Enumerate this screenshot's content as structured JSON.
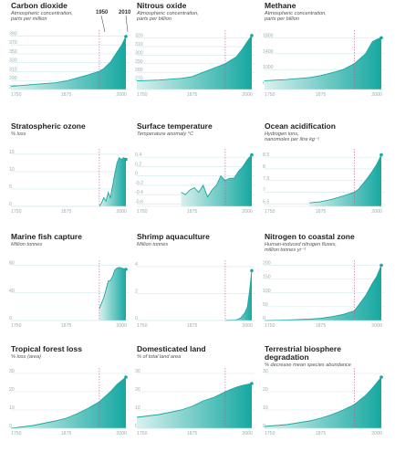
{
  "page": {
    "annotation_1950": "1950",
    "annotation_2010": "2010"
  },
  "colors": {
    "fill_light": "#d8f1ef",
    "fill_dark": "#16a8a1",
    "line": "#16a8a1",
    "grid": "#cfe7e6",
    "axis_text": "#9aaeb0",
    "marker_line": "#c0559a",
    "dot": "#16a8a1"
  },
  "chart_data": [
    {
      "type": "area",
      "title": "Carbon dioxide",
      "subtitle": "Atmospheric concentration,\nparts per million",
      "x_ticks": [
        "1750",
        "1875",
        "2000"
      ],
      "y_ticks": [
        270,
        290,
        310,
        330,
        350,
        370,
        390
      ],
      "ylim": [
        270,
        395
      ],
      "x": [
        1750,
        1800,
        1850,
        1875,
        1900,
        1925,
        1950,
        1960,
        1975,
        1990,
        2000,
        2010
      ],
      "values": [
        277,
        281,
        285,
        289,
        296,
        303,
        311,
        317,
        331,
        354,
        369,
        389
      ]
    },
    {
      "type": "area",
      "title": "Nitrous oxide",
      "subtitle": "Atmospheric concentration,\nparts per billion",
      "x_ticks": [
        "1750",
        "1875",
        "2000"
      ],
      "y_ticks": [
        270,
        280,
        290,
        300,
        310,
        320
      ],
      "ylim": [
        260,
        325
      ],
      "x": [
        1750,
        1800,
        1850,
        1875,
        1900,
        1925,
        1950,
        1975,
        1990,
        2000,
        2010
      ],
      "values": [
        270,
        271,
        273,
        275,
        280,
        285,
        290,
        298,
        308,
        316,
        323
      ]
    },
    {
      "type": "area",
      "title": "Methane",
      "subtitle": "Atmospheric concentration,\nparts per billion",
      "x_ticks": [
        "1750",
        "1875",
        "2000"
      ],
      "y_ticks": [
        600,
        1000,
        1400,
        1800
      ],
      "ylim": [
        500,
        1900
      ],
      "x": [
        1750,
        1800,
        1850,
        1875,
        1900,
        1925,
        1950,
        1975,
        1990,
        2000,
        2010
      ],
      "values": [
        720,
        750,
        800,
        850,
        920,
        1000,
        1150,
        1400,
        1700,
        1760,
        1800
      ]
    },
    {
      "type": "area",
      "title": "Stratospheric ozone",
      "subtitle": "% loss",
      "x_ticks": [
        "1750",
        "1875",
        "2000"
      ],
      "y_ticks": [
        0,
        5,
        10,
        15
      ],
      "ylim": [
        0,
        15.5
      ],
      "x": [
        1950,
        1955,
        1960,
        1965,
        1970,
        1975,
        1980,
        1985,
        1990,
        1995,
        2000,
        2005,
        2010
      ],
      "values": [
        0,
        1,
        2.5,
        1.5,
        4,
        2.5,
        6,
        9.5,
        12.5,
        14,
        13.5,
        14,
        13.5
      ]
    },
    {
      "type": "area",
      "title": "Surface temperature",
      "subtitle": "Temperature anomaly °C",
      "x_ticks": [
        "1750",
        "1875",
        "2000"
      ],
      "y_ticks": [
        -0.6,
        -0.4,
        -0.2,
        0,
        0.2,
        0.4
      ],
      "ylim": [
        -0.65,
        0.5
      ],
      "x": [
        1850,
        1860,
        1870,
        1880,
        1890,
        1900,
        1910,
        1920,
        1930,
        1940,
        1950,
        1960,
        1970,
        1980,
        1990,
        2000,
        2010
      ],
      "values": [
        -0.35,
        -0.4,
        -0.3,
        -0.25,
        -0.35,
        -0.2,
        -0.45,
        -0.3,
        -0.2,
        0.0,
        -0.1,
        -0.05,
        -0.05,
        0.1,
        0.2,
        0.35,
        0.45
      ]
    },
    {
      "type": "area",
      "title": "Ocean acidification",
      "subtitle": "Hydrogen ions,\nnanomoles per litre kg⁻¹",
      "x_ticks": [
        "1750",
        "1875",
        "2000"
      ],
      "y_ticks": [
        6.5,
        7.0,
        7.5,
        8.0,
        8.5
      ],
      "ylim": [
        6.4,
        8.7
      ],
      "x": [
        1850,
        1875,
        1900,
        1925,
        1950,
        1960,
        1975,
        1990,
        2000,
        2010
      ],
      "values": [
        6.55,
        6.6,
        6.7,
        6.85,
        7.0,
        7.15,
        7.5,
        7.9,
        8.2,
        8.6
      ]
    },
    {
      "type": "area",
      "title": "Marine fish capture",
      "subtitle": "Million tonnes",
      "x_ticks": [
        "1750",
        "1875",
        "2000"
      ],
      "y_ticks": [
        0,
        40,
        80
      ],
      "ylim": [
        0,
        82
      ],
      "x": [
        1950,
        1955,
        1960,
        1965,
        1970,
        1975,
        1980,
        1985,
        1990,
        1995,
        2000,
        2005,
        2010
      ],
      "values": [
        17,
        25,
        33,
        45,
        57,
        58,
        64,
        73,
        76,
        77,
        76,
        75,
        74
      ]
    },
    {
      "type": "area",
      "title": "Shrimp aquaculture",
      "subtitle": "Million tonnes",
      "x_ticks": [
        "1750",
        "1875",
        "2000"
      ],
      "y_ticks": [
        0,
        2,
        4
      ],
      "ylim": [
        0,
        4.2
      ],
      "x": [
        1950,
        1960,
        1970,
        1975,
        1980,
        1985,
        1990,
        1995,
        2000,
        2005,
        2010
      ],
      "values": [
        0,
        0.02,
        0.03,
        0.05,
        0.1,
        0.2,
        0.4,
        0.6,
        1.0,
        2.2,
        3.7
      ]
    },
    {
      "type": "area",
      "title": "Nitrogen to coastal zone",
      "subtitle": "Human-induced nitrogen fluxes,\nmillion tonnes yr⁻¹",
      "x_ticks": [
        "1750",
        "1875",
        "2000"
      ],
      "y_ticks": [
        0,
        50,
        100,
        150,
        200
      ],
      "ylim": [
        0,
        205
      ],
      "x": [
        1750,
        1800,
        1850,
        1875,
        1900,
        1925,
        1950,
        1975,
        1990,
        2000,
        2010
      ],
      "values": [
        0,
        2,
        5,
        8,
        14,
        22,
        35,
        90,
        135,
        160,
        200
      ]
    },
    {
      "type": "area",
      "title": "Tropical forest loss",
      "subtitle": "% loss (area)",
      "x_ticks": [
        "1750",
        "1875",
        "2000"
      ],
      "y_ticks": [
        0,
        10,
        20,
        30
      ],
      "ylim": [
        0,
        31
      ],
      "x": [
        1750,
        1800,
        1850,
        1875,
        1900,
        1925,
        1950,
        1975,
        1990,
        2000,
        2010
      ],
      "values": [
        0,
        1.5,
        4,
        5.5,
        8,
        11,
        14.5,
        20,
        24,
        26,
        28
      ]
    },
    {
      "type": "area",
      "title": "Domesticated land",
      "subtitle": "% of total land area",
      "x_ticks": [
        "1750",
        "1875",
        "2000"
      ],
      "y_ticks": [
        0,
        10,
        20,
        30
      ],
      "ylim": [
        0,
        31
      ],
      "x": [
        1750,
        1800,
        1850,
        1875,
        1900,
        1925,
        1950,
        1975,
        1990,
        2000,
        2010
      ],
      "values": [
        6,
        7.5,
        10,
        12,
        15,
        17,
        20,
        22.5,
        23.5,
        24,
        24.5
      ]
    },
    {
      "type": "area",
      "title": "Terrestrial biosphere\ndegradation",
      "subtitle": "% decrease mean species abundance",
      "x_ticks": [
        "1750",
        "1875",
        "2000"
      ],
      "y_ticks": [
        0,
        10,
        20,
        30
      ],
      "ylim": [
        0,
        31
      ],
      "x": [
        1750,
        1800,
        1850,
        1875,
        1900,
        1925,
        1950,
        1975,
        1990,
        2000,
        2010
      ],
      "values": [
        1,
        2,
        4,
        5.5,
        7.5,
        10,
        13,
        18,
        22,
        25,
        28
      ]
    }
  ]
}
